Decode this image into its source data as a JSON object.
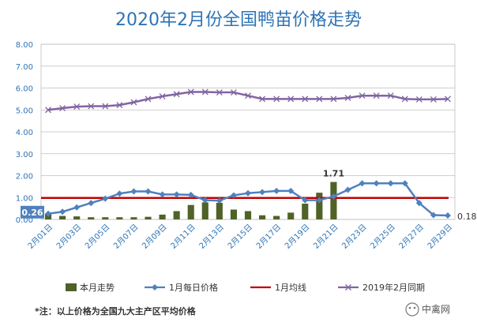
{
  "chart_data": {
    "type": "bar",
    "title": "2020年2月份全国鸭苗价格走势",
    "xlabel": "",
    "ylabel": "",
    "ylim": [
      0,
      8
    ],
    "yticks": [
      "0.00",
      "1.00",
      "2.00",
      "3.00",
      "4.00",
      "5.00",
      "6.00",
      "7.00",
      "8.00"
    ],
    "x_tick_labels": [
      "2月01日",
      "2月03日",
      "2月05日",
      "2月07日",
      "2月09日",
      "2月11日",
      "2月13日",
      "2月15日",
      "2月17日",
      "2月19日",
      "2月21日",
      "2月23日",
      "2月25日",
      "2月27日",
      "2月29日"
    ],
    "grid": "horizontal",
    "legend_position": "bottom",
    "n_days": 29,
    "series": [
      {
        "name": "本月走势",
        "type": "bar",
        "color": "#4f6228",
        "values": [
          0.26,
          0.16,
          0.14,
          0.1,
          0.1,
          0.1,
          0.1,
          0.12,
          0.22,
          0.38,
          0.66,
          0.78,
          0.76,
          0.45,
          0.38,
          0.19,
          0.16,
          0.31,
          0.72,
          1.22,
          1.71,
          null,
          null,
          null,
          null,
          null,
          null,
          null,
          null
        ]
      },
      {
        "name": "1月每日价格",
        "type": "line",
        "color": "#4f81bd",
        "values": [
          0.26,
          0.35,
          0.55,
          0.75,
          0.95,
          1.18,
          1.28,
          1.28,
          1.14,
          1.14,
          1.12,
          0.88,
          0.86,
          1.1,
          1.2,
          1.25,
          1.3,
          1.3,
          0.88,
          0.88,
          1.05,
          1.35,
          1.65,
          1.65,
          1.65,
          1.65,
          0.75,
          0.2,
          0.18
        ]
      },
      {
        "name": "1月均线",
        "type": "hline",
        "color": "#c00000",
        "value": 0.98
      },
      {
        "name": "2019年2月同期",
        "type": "line",
        "color": "#8064a2",
        "values": [
          5.0,
          5.08,
          5.15,
          5.17,
          5.17,
          5.22,
          5.35,
          5.5,
          5.62,
          5.72,
          5.82,
          5.82,
          5.8,
          5.8,
          5.65,
          5.5,
          5.5,
          5.5,
          5.5,
          5.5,
          5.5,
          5.55,
          5.65,
          5.65,
          5.65,
          5.5,
          5.48,
          5.48,
          5.5
        ]
      }
    ],
    "data_labels": [
      {
        "text": "0.26",
        "day": 1,
        "value": 0.26
      },
      {
        "text": "1.71",
        "day": 21,
        "value": 1.71
      },
      {
        "text": "0.18",
        "day": 29,
        "value": 0.18
      }
    ]
  },
  "note": "*注：以上价格为全国九大主产区平均价格",
  "watermark": "中禽网"
}
